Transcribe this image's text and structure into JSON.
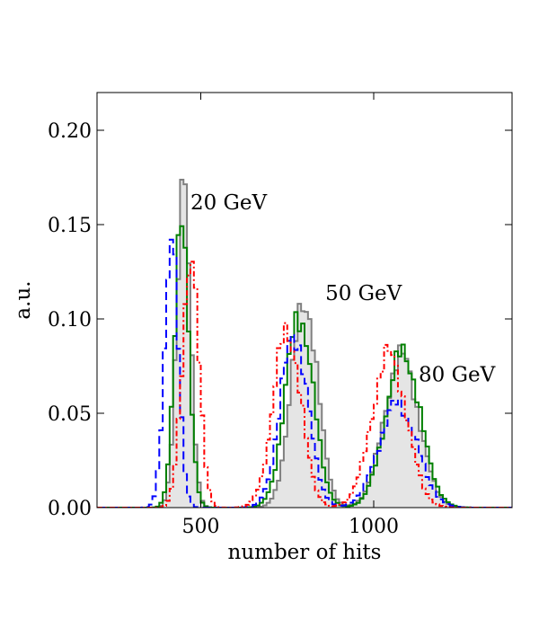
{
  "chart_data": {
    "type": "histogram",
    "xlabel": "number of hits",
    "ylabel": "a.u.",
    "xlim": [
      200,
      1400
    ],
    "ylim": [
      0,
      0.22
    ],
    "x_ticks": [
      500,
      1000
    ],
    "x_tick_labels": [
      "500",
      "1000"
    ],
    "y_ticks": [
      0.0,
      0.05,
      0.1,
      0.15,
      0.2
    ],
    "y_tick_labels": [
      "0.00",
      "0.05",
      "0.10",
      "0.15",
      "0.20"
    ],
    "bin_width": 10,
    "colors": {
      "gray": "#808080",
      "fill": "#e5e5e5",
      "green": "#008000",
      "blue": "#0000ff",
      "red": "#ff0000"
    },
    "annotations": [
      {
        "text": "20 GeV",
        "x": 470,
        "y": 0.158
      },
      {
        "text": "50 GeV",
        "x": 860,
        "y": 0.11
      },
      {
        "text": "80 GeV",
        "x": 1130,
        "y": 0.067
      }
    ],
    "series": [
      {
        "name": "gray filled",
        "style": "solid-fill",
        "color": "#808080",
        "peaks": [
          {
            "mu": 450,
            "sigma": 20,
            "peak": 0.169
          },
          {
            "mu": 800,
            "sigma": 38,
            "peak": 0.11
          },
          {
            "mu": 1080,
            "sigma": 50,
            "peak": 0.08
          }
        ]
      },
      {
        "name": "green",
        "style": "solid",
        "color": "#008000",
        "peaks": [
          {
            "mu": 445,
            "sigma": 21,
            "peak": 0.148
          },
          {
            "mu": 785,
            "sigma": 40,
            "peak": 0.102
          },
          {
            "mu": 1085,
            "sigma": 50,
            "peak": 0.082
          }
        ]
      },
      {
        "name": "blue",
        "style": "dashed",
        "color": "#0000ff",
        "peaks": [
          {
            "mu": 415,
            "sigma": 20,
            "peak": 0.14
          },
          {
            "mu": 770,
            "sigma": 40,
            "peak": 0.092
          },
          {
            "mu": 1070,
            "sigma": 55,
            "peak": 0.055
          }
        ]
      },
      {
        "name": "red",
        "style": "dash-dot",
        "color": "#ff0000",
        "peaks": [
          {
            "mu": 470,
            "sigma": 24,
            "peak": 0.132
          },
          {
            "mu": 750,
            "sigma": 40,
            "peak": 0.094
          },
          {
            "mu": 1045,
            "sigma": 50,
            "peak": 0.081
          }
        ]
      }
    ]
  }
}
